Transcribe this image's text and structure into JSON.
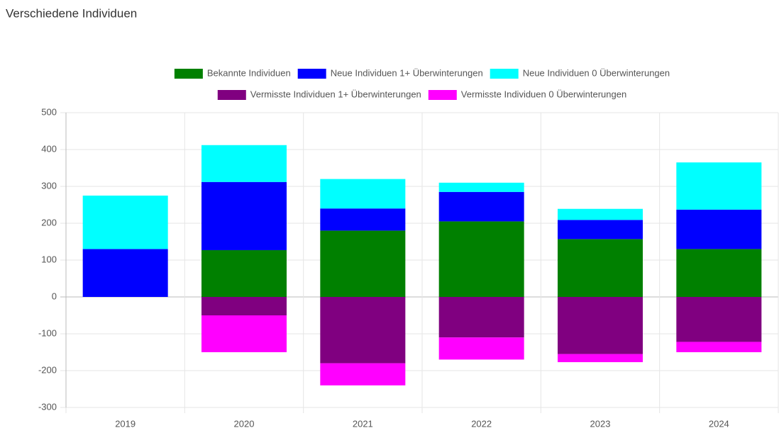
{
  "chart_data": {
    "type": "bar",
    "stacked": true,
    "title": "Verschiedene Individuen",
    "categories": [
      "2019",
      "2020",
      "2021",
      "2022",
      "2023",
      "2024"
    ],
    "series": [
      {
        "name": "Bekannte Individuen",
        "color": "#008000",
        "values": [
          0,
          127,
          180,
          205,
          157,
          130
        ]
      },
      {
        "name": "Neue Individuen 1+ Überwinterungen",
        "color": "#0000ff",
        "values": [
          130,
          185,
          60,
          80,
          52,
          107
        ]
      },
      {
        "name": "Neue Individuen 0 Überwinterungen",
        "color": "#00ffff",
        "values": [
          145,
          100,
          80,
          25,
          30,
          128
        ]
      },
      {
        "name": "Vermisste Individuen 1+ Überwinterungen",
        "color": "#800080",
        "values": [
          0,
          -50,
          -180,
          -110,
          -155,
          -122
        ]
      },
      {
        "name": "Vermisste Individuen 0 Überwinterungen",
        "color": "#ff00ff",
        "values": [
          0,
          -100,
          -60,
          -60,
          -22,
          -28
        ]
      }
    ],
    "ylim": [
      -300,
      500
    ],
    "yticks": [
      -300,
      -200,
      -100,
      0,
      100,
      200,
      300,
      400,
      500
    ],
    "grid": true
  }
}
